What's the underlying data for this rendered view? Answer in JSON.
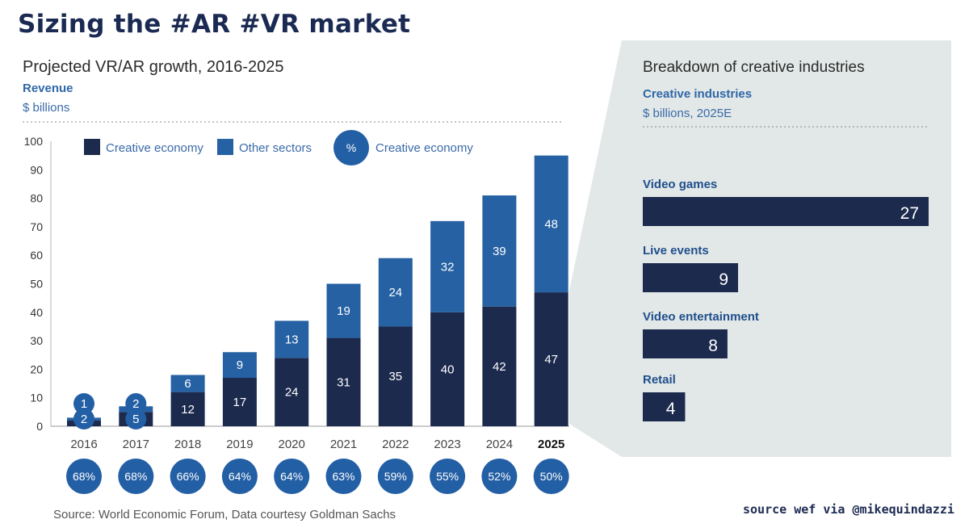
{
  "title": "Sizing the #AR #VR market",
  "credit": "source wef via @mikequindazzi",
  "colors": {
    "creative": "#1c2a4d",
    "other": "#2561a3",
    "circle": "#235fa5",
    "panel": "#e2e8e7",
    "title": "#1b2a52"
  },
  "chart_data": [
    {
      "type": "bar",
      "title": "Projected VR/AR growth, 2016-2025",
      "subtitle": "Revenue",
      "unit": "$ billions",
      "source": "Source: World Economic Forum, Data courtesy Goldman Sachs",
      "stacked": true,
      "categories": [
        "2016",
        "2017",
        "2018",
        "2019",
        "2020",
        "2021",
        "2022",
        "2023",
        "2024",
        "2025"
      ],
      "highlight_category": "2025",
      "series": [
        {
          "name": "Creative economy",
          "values": [
            2,
            5,
            12,
            17,
            24,
            31,
            35,
            40,
            42,
            47
          ]
        },
        {
          "name": "Other sectors",
          "values": [
            1,
            2,
            6,
            9,
            13,
            19,
            24,
            32,
            39,
            48
          ]
        }
      ],
      "creative_share": {
        "legend_symbol": "%",
        "legend_label": "Creative economy",
        "values": [
          "68%",
          "68%",
          "66%",
          "64%",
          "64%",
          "63%",
          "59%",
          "55%",
          "52%",
          "50%"
        ]
      },
      "ylim": [
        0,
        100
      ],
      "yticks": [
        0,
        10,
        20,
        30,
        40,
        50,
        60,
        70,
        80,
        90,
        100
      ],
      "grid": false,
      "legend_position": "top-left"
    },
    {
      "type": "bar",
      "orientation": "horizontal",
      "title": "Breakdown of creative industries",
      "subtitle": "Creative industries",
      "unit": "$ billions, 2025E",
      "categories": [
        "Video games",
        "Live events",
        "Video entertainment",
        "Retail"
      ],
      "values": [
        27,
        9,
        8,
        4
      ]
    }
  ]
}
